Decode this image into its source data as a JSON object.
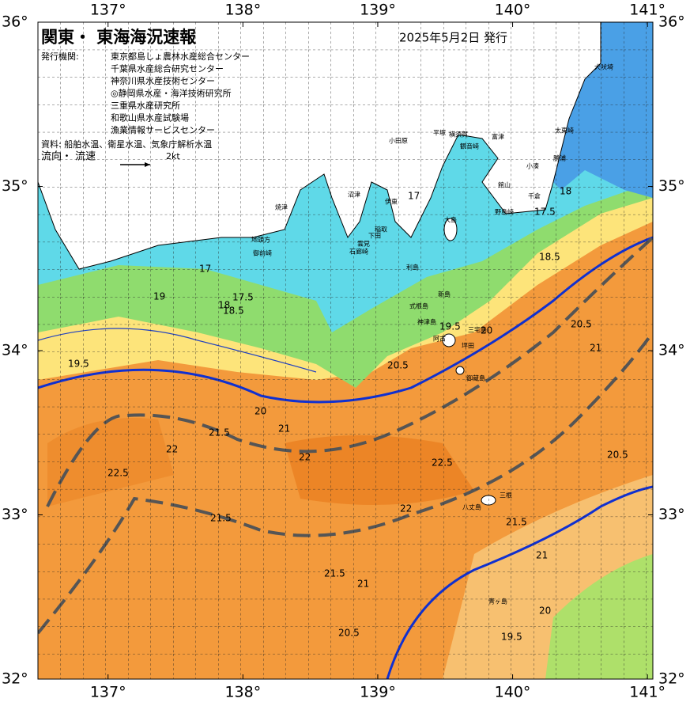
{
  "header": {
    "title": "関東・ 東海海況速報",
    "date": "2025年5月2日 発行",
    "issuer_label": "発行機関:",
    "issuers": [
      "東京都島しょ農林水産総合センター",
      "千葉県水産総合研究センター",
      "神奈川県水産技術センター",
      "◎静岡県水産・海洋技術研究所",
      "三重県水産研究所",
      "和歌山県水産試験場",
      "漁業情報サービスセンター"
    ],
    "sources": "資料: 船舶水温、衛星水温、気象庁解析水温",
    "flow_label": "流向・ 流速",
    "flow_scale": "2kt"
  },
  "axes": {
    "xlim": [
      136.48,
      141.04
    ],
    "ylim": [
      32,
      36
    ],
    "xticks": [
      {
        "value": 137,
        "label": "137°"
      },
      {
        "value": 138,
        "label": "138°"
      },
      {
        "value": 139,
        "label": "139°"
      },
      {
        "value": 140,
        "label": "140°"
      },
      {
        "value": 141,
        "label": "141°"
      }
    ],
    "yticks": [
      {
        "value": 32,
        "label": "32°"
      },
      {
        "value": 33,
        "label": "33°"
      },
      {
        "value": 34,
        "label": "34°"
      },
      {
        "value": 35,
        "label": "35°"
      },
      {
        "value": 36,
        "label": "36°"
      }
    ]
  },
  "place_names": [
    "犬吠埼",
    "太東崎",
    "勝浦",
    "小湊",
    "千倉",
    "館山",
    "野島崎",
    "富津",
    "横須賀",
    "観音崎",
    "平塚",
    "小田原",
    "焼津",
    "沼津",
    "伊東",
    "稲取",
    "下田",
    "雲見",
    "石廊崎",
    "地頭方",
    "御前崎",
    "大島",
    "利島",
    "新島",
    "式根島",
    "神津島",
    "三宅島",
    "阿古",
    "坪田",
    "御蔵島",
    "八丈島",
    "三根",
    "青ヶ島"
  ],
  "isotherm_labels": [
    "17",
    "17.5",
    "18",
    "18.5",
    "19",
    "19.5",
    "20",
    "20.5",
    "21",
    "21.5",
    "22",
    "22.5",
    "22",
    "21.5",
    "21.5",
    "21",
    "20.5",
    "19.5",
    "20",
    "21",
    "21.5",
    "22",
    "22.5",
    "20.5",
    "21",
    "20.5",
    "17",
    "17.5",
    "18",
    "18.5",
    "19.5",
    "20"
  ]
}
